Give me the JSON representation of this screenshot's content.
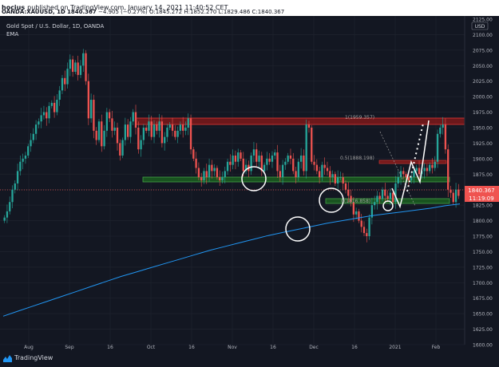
{
  "header": {
    "author": "hocius",
    "published": "published on TradingView.com, January 14, 2021 11:40:52 CET",
    "symbol": "OANDA:XAUUSD, 1D",
    "last": "1840.367",
    "change": "−4.905 (−0.27%)",
    "o_label": "O:",
    "o": "1845.272",
    "h_label": "H:",
    "h": "1852.270",
    "l_label": "L:",
    "l": "1829.486",
    "c_label": "C:",
    "c": "1840.367"
  },
  "legend": {
    "title": "Gold Spot / U.S. Dollar, 1D, OANDA",
    "indicator": "EMA"
  },
  "axis": {
    "currency": "USD",
    "price_tag": "1840.367",
    "countdown_tag": "11:19:09"
  },
  "drawings": {
    "fib_top": "1(1959.357)",
    "fib_mid": "0.5(1888.198)",
    "fib_low": "0(1816.858)"
  },
  "footer": {
    "brand": "TradingView"
  },
  "colors": {
    "background": "#131722",
    "up": "#26a69a",
    "down": "#ef5350",
    "ema": "#2196f3",
    "resistance_zone": "#b71c1c",
    "support_zone": "#1b5e20"
  },
  "chart_data": {
    "type": "candlestick",
    "title": "Gold Spot / U.S. Dollar, 1D, OANDA",
    "ylabel": "USD",
    "ylim": [
      1600,
      2125
    ],
    "y_ticks": [
      1600,
      1625,
      1650,
      1675,
      1700,
      1725,
      1750,
      1775,
      1800,
      1825,
      1850,
      1875,
      1900,
      1925,
      1950,
      1975,
      2000,
      2025,
      2050,
      2075,
      2100,
      2125
    ],
    "x_ticks": [
      "Aug",
      "Sep",
      "16",
      "Oct",
      "16",
      "Nov",
      "16",
      "Dec",
      "16",
      "2021",
      "Feb"
    ],
    "last_price": 1840.367,
    "closes": [
      1805,
      1815,
      1830,
      1850,
      1860,
      1880,
      1895,
      1900,
      1905,
      1920,
      1930,
      1940,
      1955,
      1960,
      1970,
      1975,
      1965,
      1985,
      1990,
      1975,
      1995,
      2010,
      2030,
      2020,
      2045,
      2060,
      2040,
      2055,
      2035,
      2050,
      2070,
      2025,
      1965,
      1995,
      1945,
      1930,
      1960,
      1920,
      1945,
      1975,
      1965,
      1945,
      1950,
      1925,
      1905,
      1930,
      1955,
      1935,
      1960,
      1975,
      1950,
      1915,
      1930,
      1950,
      1945,
      1960,
      1935,
      1955,
      1945,
      1960,
      1925,
      1935,
      1950,
      1955,
      1945,
      1935,
      1945,
      1955,
      1945,
      1950,
      1965,
      1915,
      1900,
      1885,
      1870,
      1865,
      1880,
      1870,
      1890,
      1880,
      1885,
      1870,
      1865,
      1870,
      1880,
      1895,
      1890,
      1905,
      1895,
      1910,
      1900,
      1880,
      1890,
      1880,
      1905,
      1915,
      1895,
      1905,
      1880,
      1890,
      1900,
      1895,
      1905,
      1910,
      1880,
      1870,
      1890,
      1895,
      1905,
      1900,
      1880,
      1870,
      1895,
      1905,
      1880,
      1955,
      1950,
      1895,
      1890,
      1880,
      1870,
      1890,
      1885,
      1880,
      1870,
      1875,
      1860,
      1870,
      1870,
      1860,
      1850,
      1840,
      1830,
      1810,
      1815,
      1800,
      1790,
      1780,
      1775,
      1805,
      1825,
      1830,
      1840,
      1835,
      1850,
      1840,
      1835,
      1845,
      1830,
      1860,
      1870,
      1880,
      1875,
      1870,
      1865,
      1870,
      1880,
      1885,
      1875,
      1880,
      1885,
      1880,
      1890,
      1885,
      1895,
      1940,
      1950,
      1955,
      1915,
      1850,
      1845,
      1830,
      1850,
      1840
    ],
    "ema": [
      1646,
      1654,
      1662,
      1670,
      1678,
      1686,
      1694,
      1702,
      1710,
      1717,
      1724,
      1731,
      1738,
      1745,
      1752,
      1758,
      1764,
      1770,
      1776,
      1781,
      1786,
      1791,
      1796,
      1800,
      1804,
      1808,
      1811,
      1814,
      1817,
      1820,
      1824,
      1827
    ]
  }
}
